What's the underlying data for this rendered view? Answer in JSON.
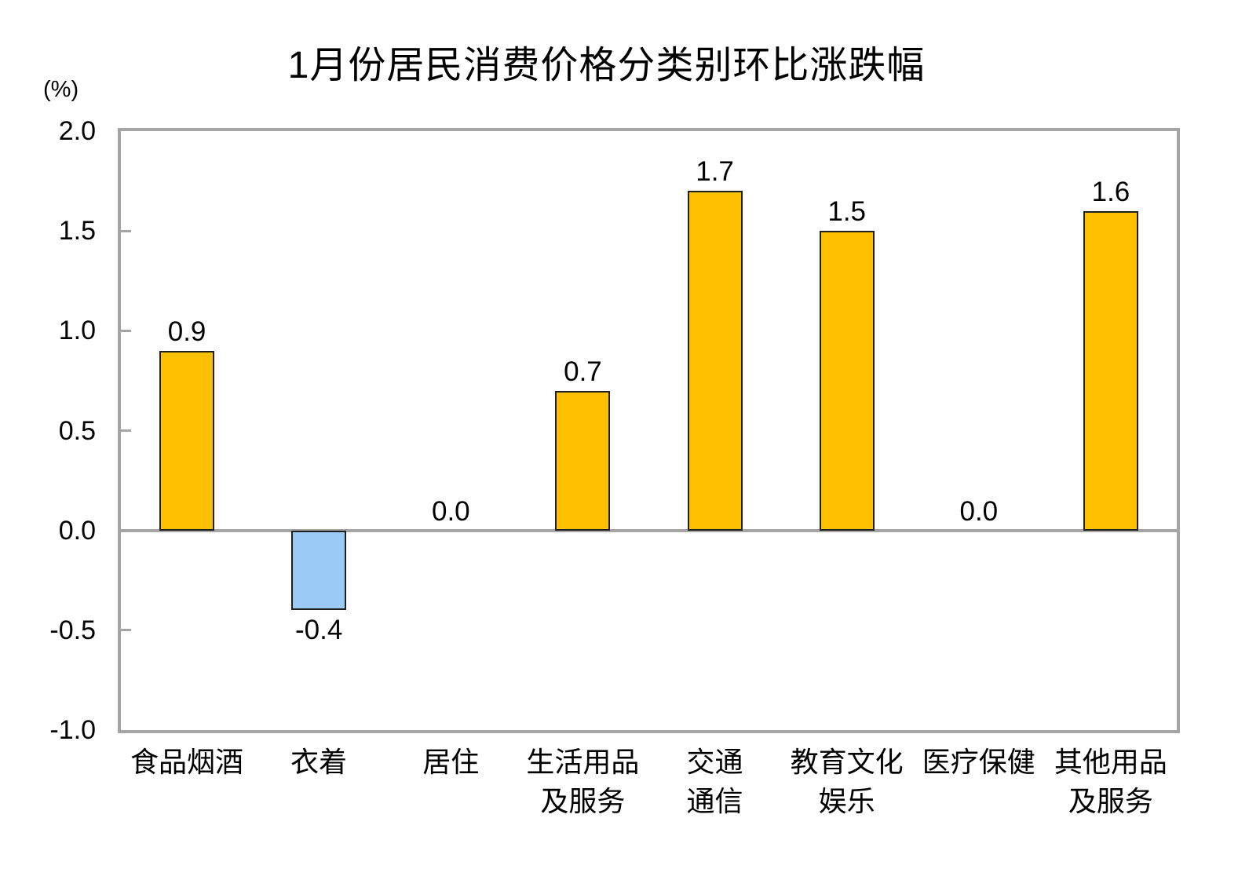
{
  "chart_data": {
    "type": "bar",
    "title": "1月份居民消费价格分类别环比涨跌幅",
    "unit_label": "(%)",
    "categories": [
      "食品烟酒",
      "衣着",
      "居住",
      "生活用品及服务",
      "交通通信",
      "教育文化娱乐",
      "医疗保健",
      "其他用品及服务"
    ],
    "category_lines": [
      [
        "食品烟酒"
      ],
      [
        "衣着"
      ],
      [
        "居住"
      ],
      [
        "生活用品",
        "及服务"
      ],
      [
        "交通",
        "通信"
      ],
      [
        "教育文化",
        "娱乐"
      ],
      [
        "医疗保健"
      ],
      [
        "其他用品",
        "及服务"
      ]
    ],
    "values": [
      0.9,
      -0.4,
      0.0,
      0.7,
      1.7,
      1.5,
      0.0,
      1.6
    ],
    "value_labels": [
      "0.9",
      "-0.4",
      "0.0",
      "0.7",
      "1.7",
      "1.5",
      "0.0",
      "1.6"
    ],
    "xlabel": "",
    "ylabel": "(%)",
    "ylim": [
      -1.0,
      2.0
    ],
    "yticks": [
      {
        "label": "2.0",
        "value": 2.0
      },
      {
        "label": "1.5",
        "value": 1.5
      },
      {
        "label": "1.0",
        "value": 1.0
      },
      {
        "label": "0.5",
        "value": 0.5
      },
      {
        "label": "0.0",
        "value": 0.0
      },
      {
        "label": "-0.5",
        "value": -0.5
      },
      {
        "label": "-1.0",
        "value": -1.0
      }
    ],
    "grid": false,
    "legend": "none",
    "colors": {
      "bar_positive": "#FFC000",
      "bar_negative": "#9BCAF6",
      "bar_border": "#1F1F1F",
      "axis_frame": "#A5A5A5",
      "text": "#000000",
      "background": "#FFFFFF"
    }
  }
}
